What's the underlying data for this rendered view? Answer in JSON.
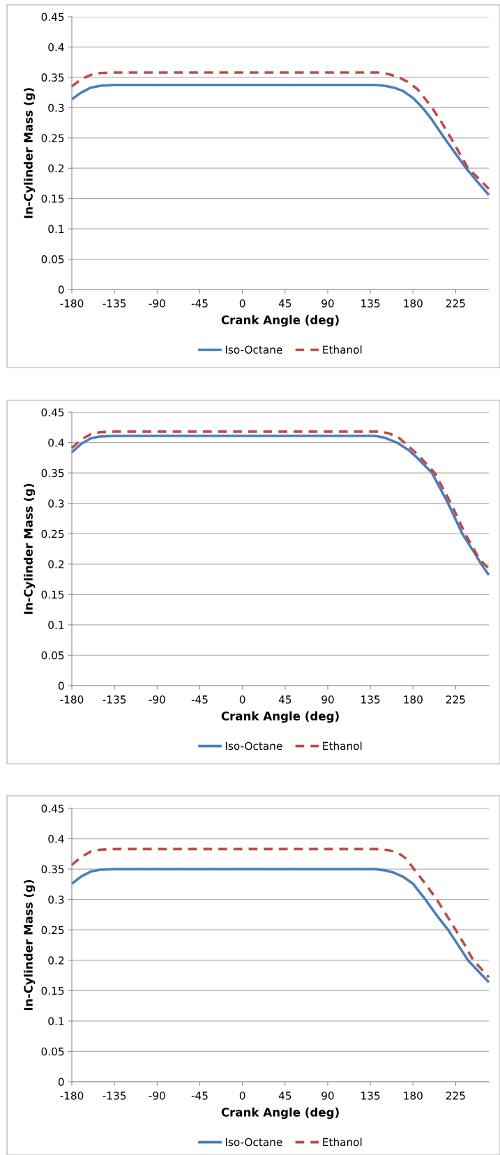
{
  "chart_data": [
    {
      "type": "line",
      "xlabel": "Crank Angle (deg)",
      "ylabel": "In-Cylinder Mass (g)",
      "xlim": [
        -180,
        260
      ],
      "xticks": [
        -180,
        -135,
        -90,
        -45,
        0,
        45,
        90,
        135,
        180,
        225
      ],
      "ylim": [
        0,
        0.45
      ],
      "yticks": [
        0,
        0.05,
        0.1,
        0.15,
        0.2,
        0.25,
        0.3,
        0.35,
        0.4,
        0.45
      ],
      "grid": "y",
      "legend": "bottom",
      "series": [
        {
          "name": "Iso-Octane",
          "color": "#4a7ebb",
          "line_style": "solid",
          "x": [
            -180,
            -170,
            -160,
            -150,
            -135,
            0,
            140,
            150,
            160,
            170,
            180,
            190,
            200,
            213,
            225,
            236,
            250,
            260
          ],
          "values": [
            0.314,
            0.325,
            0.333,
            0.336,
            0.3375,
            0.3375,
            0.3375,
            0.336,
            0.333,
            0.327,
            0.316,
            0.3,
            0.28,
            0.25,
            0.224,
            0.2,
            0.174,
            0.156
          ]
        },
        {
          "name": "Ethanol",
          "color": "#be4b48",
          "line_style": "dashed",
          "x": [
            -180,
            -170,
            -160,
            -150,
            -135,
            0,
            145,
            155,
            165,
            175,
            185,
            200,
            210,
            220,
            230,
            238,
            250,
            260
          ],
          "values": [
            0.335,
            0.347,
            0.354,
            0.357,
            0.358,
            0.358,
            0.358,
            0.355,
            0.35,
            0.342,
            0.33,
            0.3,
            0.276,
            0.25,
            0.222,
            0.2,
            0.182,
            0.166
          ]
        }
      ]
    },
    {
      "type": "line",
      "xlabel": "Crank Angle (deg)",
      "ylabel": "In-Cylinder Mass (g)",
      "xlim": [
        -180,
        260
      ],
      "xticks": [
        -180,
        -135,
        -90,
        -45,
        0,
        45,
        90,
        135,
        180,
        225
      ],
      "ylim": [
        0,
        0.45
      ],
      "yticks": [
        0,
        0.05,
        0.1,
        0.15,
        0.2,
        0.25,
        0.3,
        0.35,
        0.4,
        0.45
      ],
      "grid": "y",
      "legend": "bottom",
      "series": [
        {
          "name": "Iso-Octane",
          "color": "#4a7ebb",
          "line_style": "solid",
          "x": [
            -180,
            -170,
            -160,
            -150,
            -135,
            0,
            140,
            150,
            163,
            175,
            185,
            200,
            217,
            232,
            245,
            252,
            260
          ],
          "values": [
            0.384,
            0.398,
            0.407,
            0.41,
            0.411,
            0.411,
            0.411,
            0.408,
            0.4,
            0.388,
            0.374,
            0.35,
            0.3,
            0.25,
            0.218,
            0.2,
            0.182
          ]
        },
        {
          "name": "Ethanol",
          "color": "#be4b48",
          "line_style": "dashed",
          "x": [
            -180,
            -170,
            -160,
            -150,
            -135,
            0,
            145,
            155,
            165,
            171,
            185,
            203,
            220,
            235,
            248,
            255,
            260
          ],
          "values": [
            0.391,
            0.405,
            0.414,
            0.417,
            0.418,
            0.418,
            0.418,
            0.415,
            0.408,
            0.4,
            0.38,
            0.35,
            0.3,
            0.25,
            0.214,
            0.2,
            0.193
          ]
        }
      ]
    },
    {
      "type": "line",
      "xlabel": "Crank Angle (deg)",
      "ylabel": "In-Cylinder Mass (g)",
      "xlim": [
        -180,
        260
      ],
      "xticks": [
        -180,
        -135,
        -90,
        -45,
        0,
        45,
        90,
        135,
        180,
        225
      ],
      "ylim": [
        0,
        0.45
      ],
      "yticks": [
        0,
        0.05,
        0.1,
        0.15,
        0.2,
        0.25,
        0.3,
        0.35,
        0.4,
        0.45
      ],
      "grid": "y",
      "legend": "bottom",
      "series": [
        {
          "name": "Iso-Octane",
          "color": "#4a7ebb",
          "line_style": "solid",
          "x": [
            -180,
            -170,
            -160,
            -150,
            -135,
            0,
            140,
            150,
            160,
            170,
            180,
            193,
            205,
            217,
            228,
            238,
            250,
            260
          ],
          "values": [
            0.326,
            0.338,
            0.346,
            0.349,
            0.35,
            0.35,
            0.35,
            0.348,
            0.344,
            0.337,
            0.326,
            0.3,
            0.274,
            0.25,
            0.224,
            0.2,
            0.18,
            0.164
          ]
        },
        {
          "name": "Ethanol",
          "color": "#be4b48",
          "line_style": "dashed",
          "x": [
            -180,
            -170,
            -160,
            -150,
            -135,
            0,
            145,
            155,
            165,
            173,
            181,
            193,
            205,
            225,
            235,
            243.5,
            252,
            260
          ],
          "values": [
            0.357,
            0.37,
            0.379,
            0.382,
            0.383,
            0.383,
            0.383,
            0.381,
            0.376,
            0.367,
            0.35,
            0.326,
            0.3,
            0.25,
            0.224,
            0.2,
            0.186,
            0.172
          ]
        }
      ]
    }
  ]
}
